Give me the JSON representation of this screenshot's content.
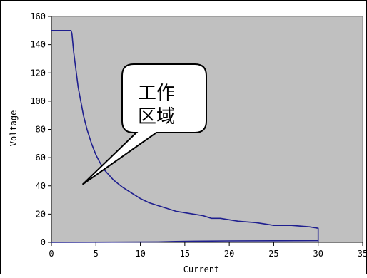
{
  "chart_data": {
    "type": "line",
    "xlabel": "Current",
    "ylabel": "Voltage",
    "xlim": [
      0,
      35
    ],
    "ylim": [
      0,
      160
    ],
    "x_ticks": [
      "0",
      "5",
      "10",
      "15",
      "20",
      "25",
      "30",
      "35"
    ],
    "y_ticks": [
      "0",
      "20",
      "40",
      "60",
      "80",
      "100",
      "120",
      "140",
      "160"
    ],
    "grid": false,
    "legend": "none",
    "plot_background": "#c0c0c0",
    "series": [
      {
        "color": "#1f1f8f",
        "points": [
          [
            0,
            150
          ],
          [
            2.2,
            150
          ],
          [
            2.3,
            148
          ],
          [
            2.5,
            135
          ],
          [
            2.8,
            120
          ],
          [
            3.0,
            110
          ],
          [
            3.3,
            100
          ],
          [
            3.6,
            90
          ],
          [
            4.0,
            80
          ],
          [
            4.5,
            70
          ],
          [
            5.0,
            62
          ],
          [
            5.5,
            56
          ],
          [
            6.0,
            51
          ],
          [
            7.0,
            44
          ],
          [
            8.0,
            39
          ],
          [
            9.0,
            35
          ],
          [
            10.0,
            31
          ],
          [
            11.0,
            28
          ],
          [
            12.0,
            26
          ],
          [
            13.0,
            24
          ],
          [
            14.0,
            22
          ],
          [
            15.0,
            21
          ],
          [
            16.0,
            20
          ],
          [
            17.0,
            19
          ],
          [
            18.0,
            17
          ],
          [
            19.0,
            17
          ],
          [
            20.0,
            16
          ],
          [
            21.0,
            15
          ],
          [
            22.0,
            14.5
          ],
          [
            23.0,
            14
          ],
          [
            24.0,
            13
          ],
          [
            25.0,
            12
          ],
          [
            26.0,
            12
          ],
          [
            27.0,
            12
          ],
          [
            28.0,
            11.5
          ],
          [
            29.0,
            11
          ],
          [
            29.5,
            10.5
          ],
          [
            30.0,
            10
          ],
          [
            30.0,
            0
          ]
        ]
      },
      {
        "color": "#1f1f8f",
        "points": [
          [
            0,
            0
          ],
          [
            12,
            0.3
          ],
          [
            14,
            0.6
          ],
          [
            16,
            0.8
          ],
          [
            20,
            1.0
          ],
          [
            25,
            1.1
          ],
          [
            30,
            1.2
          ]
        ]
      }
    ],
    "annotations": [
      {
        "lines": [
          "工作",
          "区域"
        ],
        "arrow_to": [
          3.5,
          41
        ]
      }
    ]
  }
}
